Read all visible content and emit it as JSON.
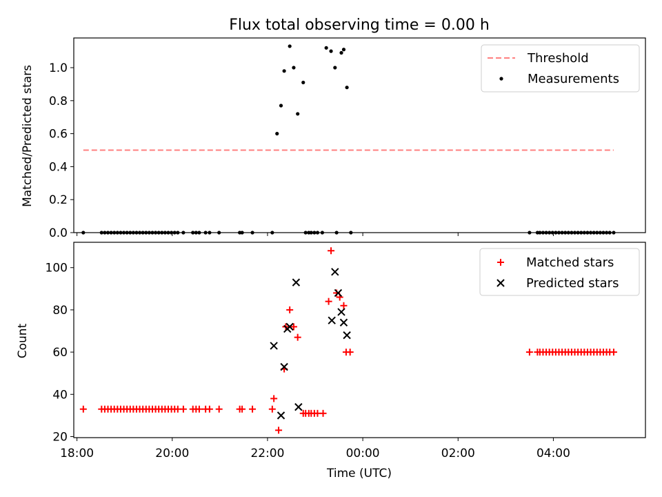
{
  "chart_data": [
    {
      "type": "scatter",
      "title": "Flux total observing time = 0.00 h",
      "xlabel": "",
      "ylabel": "Matched/Predicted stars",
      "xlim": [
        "17:56",
        "05:56"
      ],
      "ylim": [
        0,
        1.18
      ],
      "yticks": [
        0.0,
        0.2,
        0.4,
        0.6,
        0.8,
        1.0
      ],
      "ytick_labels": [
        "0.0",
        "0.2",
        "0.4",
        "0.6",
        "0.8",
        "1.0"
      ],
      "grid": false,
      "legend_position": "top-right",
      "series": [
        {
          "name": "Threshold",
          "kind": "dashed-line",
          "color": "#ff7f7f",
          "x": [
            "18:08",
            "05:16"
          ],
          "y": [
            0.5,
            0.5
          ]
        },
        {
          "name": "Measurements",
          "kind": "dot",
          "color": "#000000",
          "x": [
            "18:08",
            "18:31",
            "18:35",
            "18:39",
            "18:43",
            "18:47",
            "18:51",
            "18:55",
            "18:59",
            "19:03",
            "19:07",
            "19:11",
            "19:15",
            "19:19",
            "19:23",
            "19:27",
            "19:31",
            "19:35",
            "19:39",
            "19:43",
            "19:47",
            "19:51",
            "19:55",
            "19:59",
            "20:03",
            "20:07",
            "20:14",
            "20:26",
            "20:30",
            "20:34",
            "20:42",
            "20:47",
            "20:59",
            "21:25",
            "21:28",
            "21:41",
            "22:06",
            "22:12",
            "22:17",
            "22:21",
            "22:28",
            "22:33",
            "22:38",
            "22:45",
            "22:48",
            "22:52",
            "22:55",
            "22:59",
            "23:03",
            "23:09",
            "23:14",
            "23:20",
            "23:25",
            "23:27",
            "23:33",
            "23:36",
            "23:40",
            "23:45",
            "03:30",
            "03:40",
            "03:43",
            "03:47",
            "03:51",
            "03:55",
            "03:59",
            "04:03",
            "04:07",
            "04:11",
            "04:15",
            "04:19",
            "04:23",
            "04:27",
            "04:31",
            "04:35",
            "04:39",
            "04:43",
            "04:47",
            "04:51",
            "04:55",
            "04:59",
            "05:03",
            "05:07",
            "05:11",
            "05:16"
          ],
          "y": [
            0,
            0,
            0,
            0,
            0,
            0,
            0,
            0,
            0,
            0,
            0,
            0,
            0,
            0,
            0,
            0,
            0,
            0,
            0,
            0,
            0,
            0,
            0,
            0,
            0,
            0,
            0,
            0,
            0,
            0,
            0,
            0,
            0,
            0,
            0,
            0,
            0,
            0.6,
            0.77,
            0.98,
            1.13,
            1.0,
            0.72,
            0.91,
            0,
            0,
            0,
            0,
            0,
            0,
            1.12,
            1.1,
            1.0,
            0,
            1.09,
            1.11,
            0.88,
            0,
            0,
            0,
            0,
            0,
            0,
            0,
            0,
            0,
            0,
            0,
            0,
            0,
            0,
            0,
            0,
            0,
            0,
            0,
            0,
            0,
            0,
            0,
            0,
            0,
            0,
            0
          ]
        }
      ]
    },
    {
      "type": "scatter",
      "title": "",
      "xlabel": "Time (UTC)",
      "ylabel": "Count",
      "xlim": [
        "17:56",
        "05:56"
      ],
      "ylim": [
        19.5,
        112
      ],
      "xticks": [
        "18:00",
        "20:00",
        "22:00",
        "00:00",
        "02:00",
        "04:00"
      ],
      "yticks": [
        20,
        40,
        60,
        80,
        100
      ],
      "ytick_labels": [
        "20",
        "40",
        "60",
        "80",
        "100"
      ],
      "grid": false,
      "legend_position": "top-right",
      "series": [
        {
          "name": "Matched stars",
          "kind": "plus",
          "color": "#ff0000",
          "x": [
            "18:08",
            "18:31",
            "18:35",
            "18:39",
            "18:43",
            "18:47",
            "18:51",
            "18:55",
            "18:59",
            "19:03",
            "19:07",
            "19:11",
            "19:15",
            "19:19",
            "19:23",
            "19:27",
            "19:31",
            "19:35",
            "19:39",
            "19:43",
            "19:47",
            "19:51",
            "19:55",
            "19:59",
            "20:03",
            "20:07",
            "20:14",
            "20:26",
            "20:30",
            "20:34",
            "20:42",
            "20:47",
            "20:59",
            "21:25",
            "21:28",
            "21:41",
            "22:06",
            "22:08",
            "22:14",
            "22:21",
            "22:23",
            "22:28",
            "22:33",
            "22:38",
            "22:45",
            "22:48",
            "22:52",
            "22:55",
            "22:59",
            "23:03",
            "23:10",
            "23:17",
            "23:20",
            "23:27",
            "23:31",
            "23:36",
            "23:39",
            "23:44",
            "03:30",
            "03:40",
            "03:43",
            "03:47",
            "03:51",
            "03:55",
            "03:59",
            "04:03",
            "04:07",
            "04:11",
            "04:15",
            "04:19",
            "04:23",
            "04:27",
            "04:31",
            "04:35",
            "04:39",
            "04:43",
            "04:47",
            "04:51",
            "04:55",
            "04:59",
            "05:03",
            "05:07",
            "05:11",
            "05:16"
          ],
          "y": [
            33,
            33,
            33,
            33,
            33,
            33,
            33,
            33,
            33,
            33,
            33,
            33,
            33,
            33,
            33,
            33,
            33,
            33,
            33,
            33,
            33,
            33,
            33,
            33,
            33,
            33,
            33,
            33,
            33,
            33,
            33,
            33,
            33,
            33,
            33,
            33,
            33,
            38,
            23,
            52,
            72,
            80,
            72,
            67,
            31,
            31,
            31,
            31,
            31,
            31,
            31,
            84,
            108,
            88,
            86,
            82,
            60,
            60,
            60,
            60,
            60,
            60,
            60,
            60,
            60,
            60,
            60,
            60,
            60,
            60,
            60,
            60,
            60,
            60,
            60,
            60,
            60,
            60,
            60,
            60,
            60,
            60,
            60,
            60
          ]
        },
        {
          "name": "Predicted stars",
          "kind": "x",
          "color": "#000000",
          "x": [
            "22:08",
            "22:17",
            "22:21",
            "22:25",
            "22:28",
            "22:36",
            "22:39",
            "23:21",
            "23:25",
            "23:29",
            "23:33",
            "23:36",
            "23:40"
          ],
          "y": [
            63,
            30,
            53,
            71,
            72,
            93,
            34,
            75,
            98,
            88,
            79,
            74,
            68
          ]
        }
      ]
    }
  ]
}
